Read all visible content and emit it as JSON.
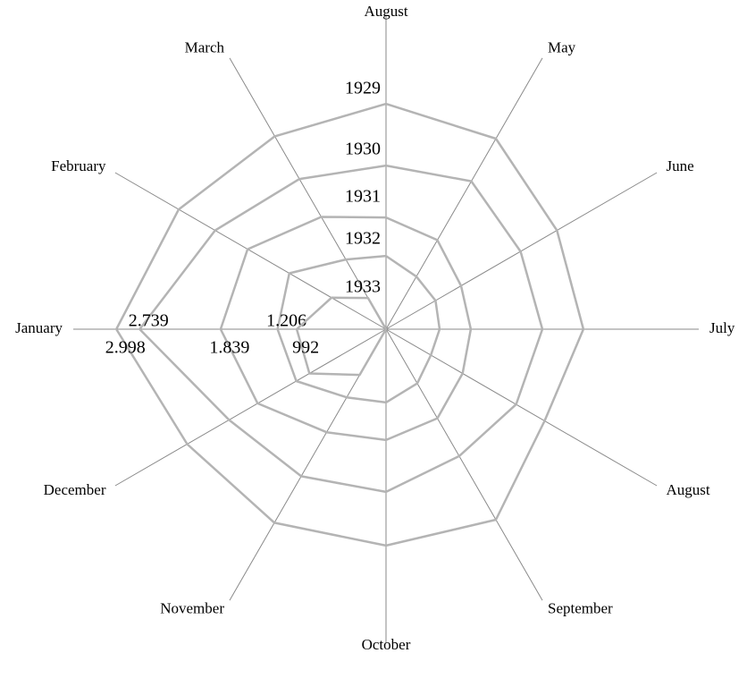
{
  "chart_data": {
    "type": "radar",
    "categories": [
      "August",
      "May",
      "June",
      "July",
      "August",
      "September",
      "October",
      "November",
      "December",
      "January",
      "February",
      "March"
    ],
    "rlim": [
      0,
      3000
    ],
    "series": [
      {
        "name": "1929",
        "color": "#b4b4b4",
        "values": [
          2502,
          2443,
          2194,
          2194,
          2036,
          2443,
          2403,
          2482,
          2552,
          2998,
          2661,
          2473
        ],
        "value_labels": [
          null,
          null,
          null,
          null,
          null,
          null,
          null,
          null,
          null,
          "2.998",
          null,
          null
        ]
      },
      {
        "name": "1930",
        "color": "#b4b4b4",
        "values": [
          1817,
          1897,
          1727,
          1738,
          1670,
          1628,
          1807,
          1886,
          2015,
          2739,
          2194,
          1926
        ],
        "value_labels": [
          null,
          null,
          null,
          null,
          null,
          null,
          null,
          null,
          null,
          "2.739",
          null,
          null
        ]
      },
      {
        "name": "1931",
        "color": "#b4b4b4",
        "values": [
          1241,
          1142,
          963,
          943,
          983,
          1142,
          1231,
          1321,
          1648,
          1839,
          1777,
          1440
        ],
        "value_labels": [
          null,
          null,
          null,
          null,
          null,
          null,
          null,
          null,
          null,
          "1.839",
          null,
          null
        ]
      },
      {
        "name": "1932",
        "color": "#b4b4b4",
        "values": [
          814,
          675,
          636,
          596,
          576,
          695,
          814,
          874,
          1152,
          1206,
          1241,
          894
        ],
        "value_labels": [
          null,
          null,
          null,
          null,
          null,
          null,
          null,
          null,
          null,
          "1.206",
          null,
          null
        ]
      },
      {
        "name": "1933",
        "color": "#b4b4b4",
        "values": [
          0,
          0,
          0,
          0,
          0,
          0,
          0,
          586,
          983,
          992,
          700,
          400
        ],
        "value_labels": [
          null,
          null,
          null,
          null,
          null,
          null,
          null,
          null,
          null,
          "992",
          null,
          null
        ]
      }
    ]
  }
}
